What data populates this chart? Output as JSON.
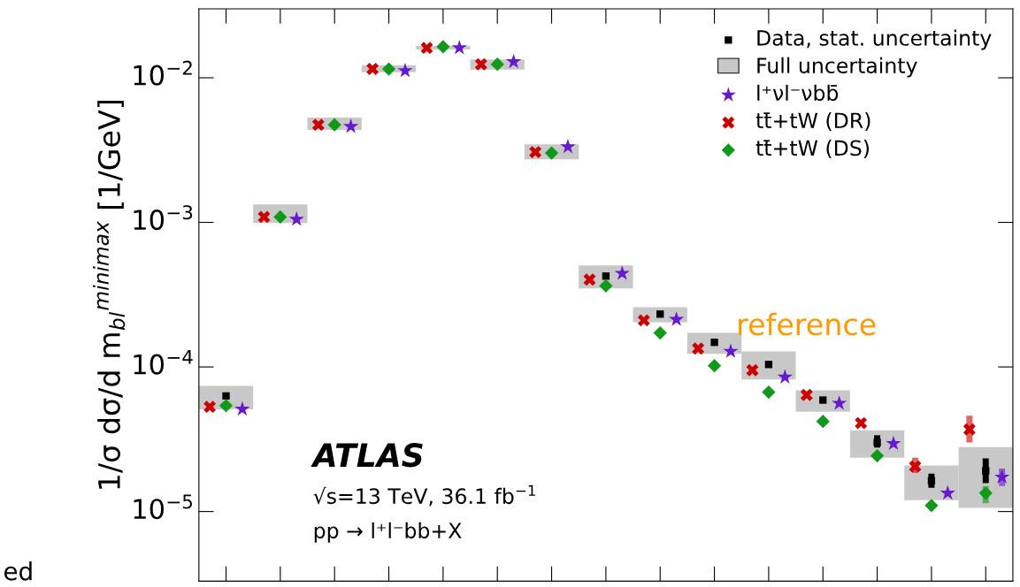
{
  "chart_data": {
    "type": "scatter",
    "ylabel": "1/σ dσ/d m$_{bl}$$^{minimax}$ [1/GeV]",
    "categories": [
      null,
      null,
      null,
      null,
      null,
      null,
      null,
      null,
      null,
      null,
      null,
      null,
      null,
      null,
      null
    ],
    "series": [
      {
        "name": "Data, stat. uncertainty",
        "marker": "square",
        "color": "#000000",
        "values": [
          6.3e-05,
          null,
          null,
          null,
          null,
          null,
          null,
          0.000425,
          0.000232,
          0.000148,
          0.000104,
          5.9e-05,
          3e-05,
          1.63e-05,
          1.91e-05
        ],
        "errors": [
          [
            6e-05,
            6.6e-05
          ],
          null,
          null,
          null,
          null,
          null,
          null,
          null,
          null,
          null,
          null,
          null,
          [
            2.77e-05,
            3.37e-05
          ],
          [
            1.46e-05,
            1.83e-05
          ],
          [
            1.57e-05,
            2.33e-05
          ]
        ]
      },
      {
        "name": "Full uncertainty",
        "type": "bar",
        "color": "#c8c8c8",
        "base": [
          5.1e-05,
          0.00099,
          0.00435,
          0.0109,
          0.0157,
          0.0114,
          0.00273,
          0.000349,
          0.000204,
          0.000123,
          8.2e-05,
          4.9e-05,
          2.36e-05,
          1.2e-05,
          1.06e-05
        ],
        "values": [
          2.3e-05,
          0.00034,
          0.00095,
          0.0013,
          0.0009,
          0.002,
          0.00074,
          0.000154,
          5.5e-05,
          4.9e-05,
          4.6e-05,
          2e-05,
          1.29e-05,
          8.8e-06,
          1.73e-05
        ]
      },
      {
        "name": "l⁺νl⁻νbb̄",
        "marker": "star",
        "color": "#6619d0",
        "values": [
          5.1e-05,
          0.00105,
          0.0046,
          0.0112,
          0.0161,
          0.0129,
          0.00333,
          0.000444,
          0.000213,
          0.000128,
          8.5e-05,
          5.6e-05,
          2.95e-05,
          1.34e-05,
          1.73e-05
        ],
        "errors": [
          null,
          null,
          null,
          null,
          null,
          null,
          null,
          null,
          null,
          null,
          null,
          null,
          null,
          null,
          [
            1.5e-05,
            1.98e-05
          ]
        ]
      },
      {
        "name": "tt̄+tW (DR)",
        "marker": "cross",
        "color": "#cc0000",
        "values": [
          5.3e-05,
          0.00109,
          0.00473,
          0.0115,
          0.0161,
          0.0124,
          0.00306,
          0.000402,
          0.00021,
          0.000134,
          9.5e-05,
          6.4e-05,
          4.09e-05,
          2.05e-05,
          3.7e-05
        ],
        "errors": [
          null,
          null,
          null,
          null,
          null,
          null,
          null,
          null,
          null,
          null,
          null,
          null,
          null,
          [
            1.85e-05,
            2.36e-05
          ],
          [
            3e-05,
            4.6e-05
          ]
        ]
      },
      {
        "name": "tt̄+tW (DS)",
        "marker": "diamond",
        "color": "#11991a",
        "values": [
          5.4e-05,
          0.00109,
          0.00473,
          0.0115,
          0.0164,
          0.0124,
          0.00302,
          0.000364,
          0.000172,
          0.000102,
          6.7e-05,
          4.2e-05,
          2.43e-05,
          1.1e-05,
          1.34e-05
        ],
        "errors": [
          null,
          null,
          null,
          null,
          null,
          null,
          null,
          null,
          null,
          null,
          null,
          null,
          null,
          null,
          [
            1.14e-05,
            1.5e-05
          ]
        ]
      }
    ],
    "log": "y",
    "ylim": [
      3.3e-06,
      0.03
    ],
    "yticks": [
      {
        "value": 1e-05,
        "label": "10$^{−5}$"
      },
      {
        "value": 0.0001,
        "label": "10$^{−4}$"
      },
      {
        "value": 0.001,
        "label": "10$^{−3}$"
      },
      {
        "value": 0.01,
        "label": "10$^{−2}$"
      }
    ],
    "tick_labels": "y",
    "grid": false,
    "legend": "top right",
    "annotations": [
      "ATLAS",
      "√s=13 TeV, 36.1 fb$^{−1}$",
      "pp → l⁺l⁻bb+X",
      "reference",
      "ed"
    ]
  }
}
